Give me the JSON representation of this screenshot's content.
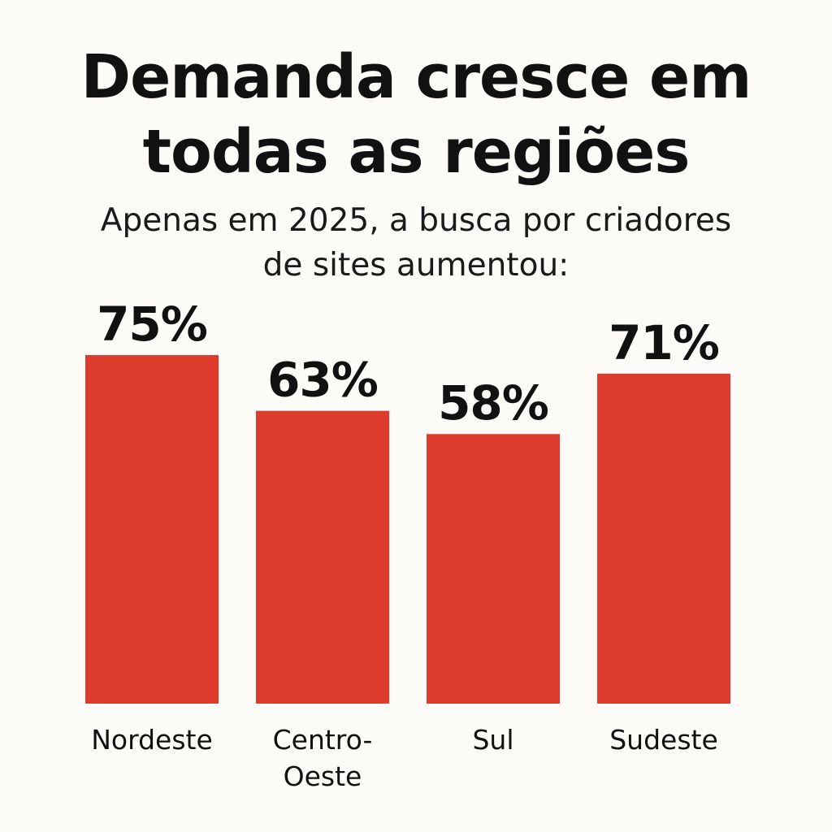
{
  "header": {
    "title_lines": [
      "Demanda cresce em",
      "todas as regiões"
    ],
    "subtitle_lines": [
      "Apenas em 2025, a busca por criadores",
      "de sites aumentou:"
    ]
  },
  "colors": {
    "bar": "#dd3b2c",
    "text": "#111111",
    "background": "#fcfbf8"
  },
  "chart_data": {
    "type": "bar",
    "title": "Demanda cresce em todas as regiões",
    "subtitle": "Apenas em 2025, a busca por criadores de sites aumentou:",
    "categories": [
      [
        "Nordeste"
      ],
      [
        "Centro-",
        "Oeste"
      ],
      [
        "Sul"
      ],
      [
        "Sudeste"
      ]
    ],
    "values": [
      75,
      63,
      58,
      71
    ],
    "value_labels": [
      "75%",
      "63%",
      "58%",
      "71%"
    ],
    "unit": "%",
    "xlabel": "",
    "ylabel": "",
    "grid": false,
    "legend": "none"
  }
}
